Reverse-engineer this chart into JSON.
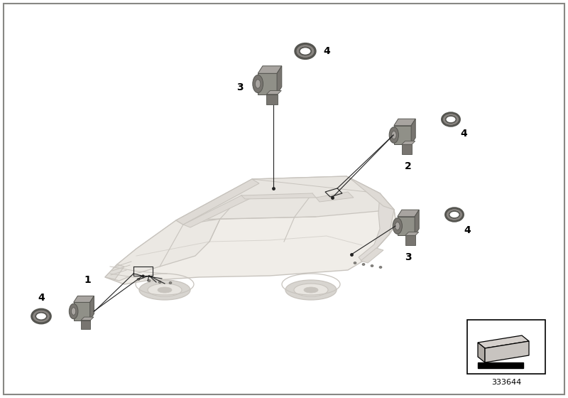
{
  "background_color": "#ffffff",
  "part_number": "333644",
  "car_color": "#f0ede8",
  "car_line_color": "#c8c4be",
  "sensor_body_color": "#909088",
  "sensor_dark_color": "#787570",
  "sensor_light_color": "#a8a4a0",
  "ring_color": "#888480",
  "ring_inner_color": "#ffffff",
  "line_color": "#222222",
  "label_color": "#000000"
}
